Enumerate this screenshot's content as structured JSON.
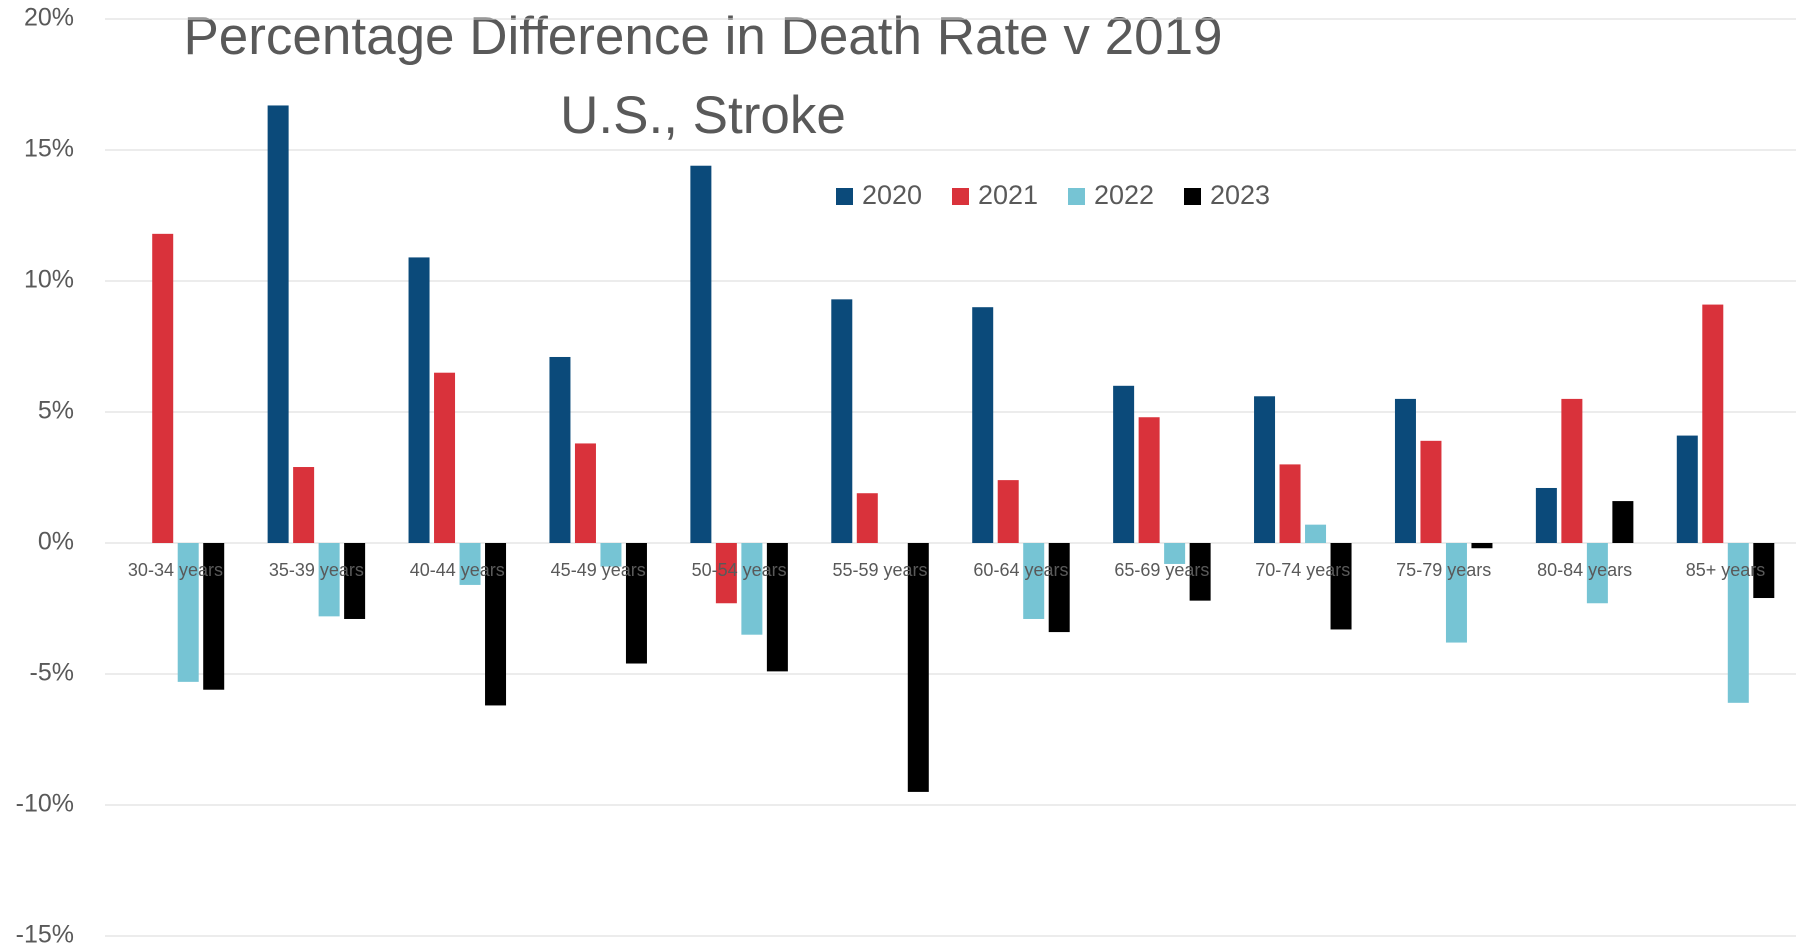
{
  "chart_data": {
    "type": "bar",
    "title": "Percentage Difference in Death Rate v 2019",
    "subtitle": "U.S., Stroke",
    "categories": [
      "30-34 years",
      "35-39 years",
      "40-44 years",
      "45-49 years",
      "50-54 years",
      "55-59 years",
      "60-64 years",
      "65-69 years",
      "70-74 years",
      "75-79 years",
      "80-84 years",
      "85+ years"
    ],
    "series": [
      {
        "name": "2020",
        "color": "#0b4a7a",
        "values": [
          null,
          16.7,
          10.9,
          7.1,
          14.4,
          9.3,
          9.0,
          6.0,
          5.6,
          5.5,
          2.1,
          4.1
        ]
      },
      {
        "name": "2021",
        "color": "#d9323b",
        "values": [
          11.8,
          2.9,
          6.5,
          3.8,
          -2.3,
          1.9,
          2.4,
          4.8,
          3.0,
          3.9,
          5.5,
          9.1
        ]
      },
      {
        "name": "2022",
        "color": "#76c4d4",
        "values": [
          -5.3,
          -2.8,
          -1.6,
          -0.9,
          -3.5,
          null,
          -2.9,
          -0.8,
          0.7,
          -3.8,
          -2.3,
          -6.1
        ]
      },
      {
        "name": "2023",
        "color": "#000000",
        "values": [
          -5.6,
          -2.9,
          -6.2,
          -4.6,
          -4.9,
          -9.5,
          -3.4,
          -2.2,
          -3.3,
          -0.2,
          1.6,
          -2.1
        ]
      }
    ],
    "ylim": [
      -15,
      20
    ],
    "yticks": [
      {
        "value": -15,
        "label": "-15%"
      },
      {
        "value": -10,
        "label": "-10%"
      },
      {
        "value": -5,
        "label": "-5%"
      },
      {
        "value": 0,
        "label": "0%"
      },
      {
        "value": 5,
        "label": "5%"
      },
      {
        "value": 10,
        "label": "10%"
      },
      {
        "value": 15,
        "label": "15%"
      },
      {
        "value": 20,
        "label": "20%"
      }
    ],
    "grid": true,
    "legend": "top"
  }
}
